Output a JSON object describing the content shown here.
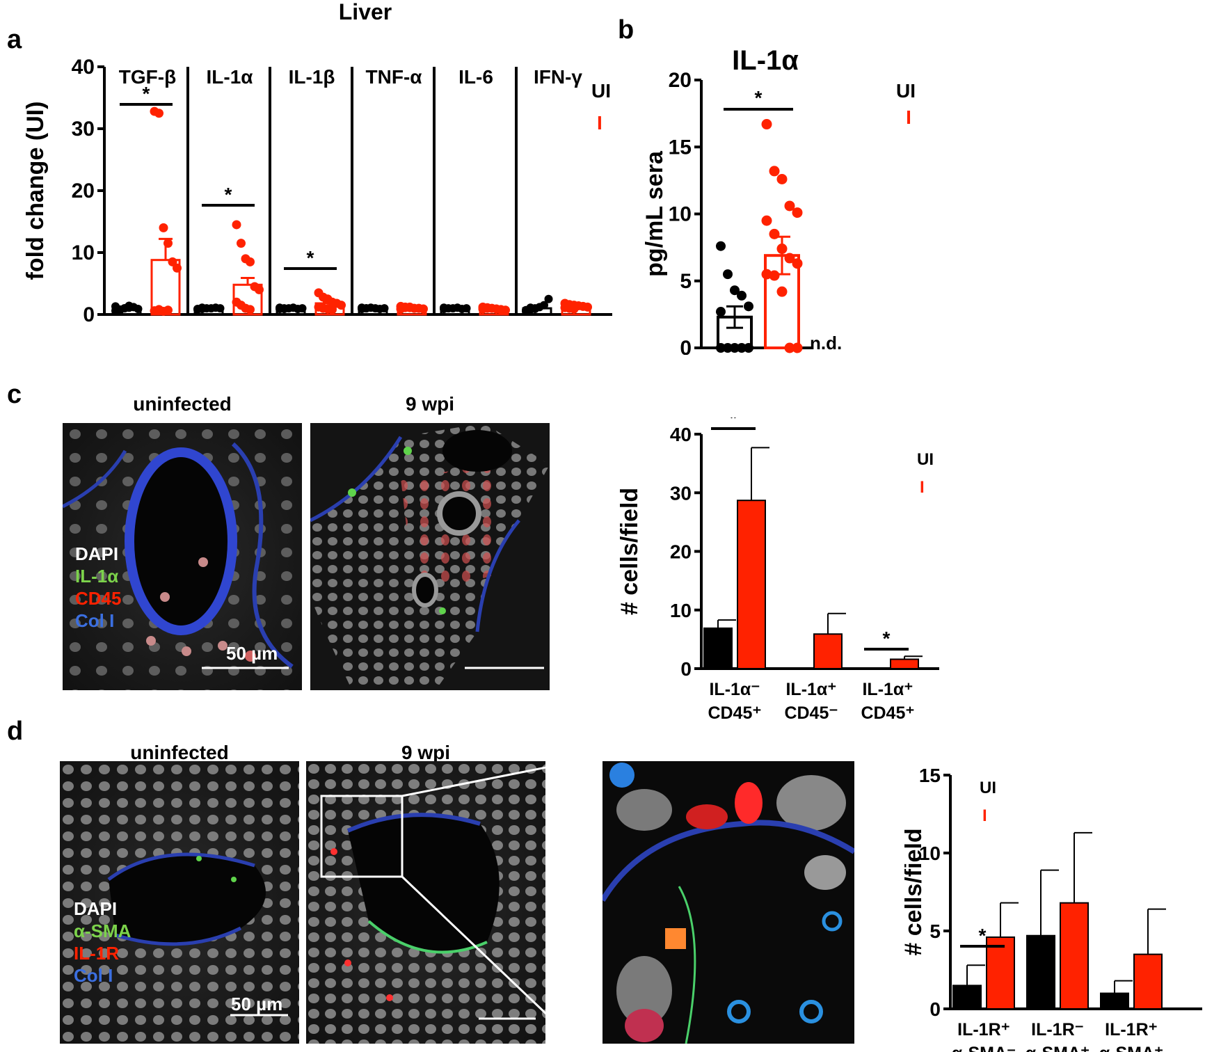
{
  "colors": {
    "ui": "#000000",
    "infected": "#ff2200",
    "dapi": "#ffffff",
    "il1a": "#7cd34b",
    "asma": "#7cd34b",
    "cd45": "#ff2200",
    "il1r": "#ff2200",
    "col1": "#3b6fe0"
  },
  "panel_a": {
    "letter": "a",
    "title": "Liver",
    "legend_ui": "UI",
    "legend_i": "I"
  },
  "panel_b": {
    "letter": "b",
    "title": "IL-1α",
    "legend_ui": "UI",
    "legend_i": "I",
    "nd_label": "n.d."
  },
  "panel_c": {
    "letter": "c",
    "img_left_title": "uninfected",
    "img_right_title": "9 wpi",
    "scale_label": "50 µm",
    "stains": [
      "DAPI",
      "IL-1α",
      "CD45",
      "Col I"
    ],
    "legend_ui": "UI",
    "legend_i": "I"
  },
  "panel_d": {
    "letter": "d",
    "img_left_title": "uninfected",
    "img_right_title": "9 wpi",
    "scale_label": "50 µm",
    "stains": [
      "DAPI",
      "α-SMA",
      "IL-1R",
      "Col I"
    ],
    "legend_ui": "UI",
    "legend_i": "I"
  },
  "chart_data": [
    {
      "id": "a",
      "type": "bar",
      "title": "Liver",
      "ylabel": "fold change (UI)",
      "ylim": [
        0,
        40
      ],
      "yticks": [
        0,
        10,
        20,
        30,
        40
      ],
      "categories": [
        "TGF-β",
        "IL-1α",
        "IL-1β",
        "TNF-α",
        "IL-6",
        "IFN-γ"
      ],
      "significant": [
        true,
        true,
        true,
        false,
        false,
        false
      ],
      "series": [
        {
          "name": "UI",
          "values": [
            1.0,
            1.0,
            1.0,
            1.0,
            1.0,
            1.0
          ]
        },
        {
          "name": "I",
          "values": [
            8.8,
            4.8,
            1.8,
            1.1,
            0.9,
            1.3
          ]
        }
      ],
      "error": {
        "UI": [
          0.2,
          0.1,
          0.1,
          0.1,
          0.1,
          0.3
        ],
        "I": [
          3.4,
          1.1,
          0.3,
          0.1,
          0.1,
          0.2
        ]
      },
      "points": {
        "UI": [
          [
            0.6,
            0.8,
            1.0,
            1.1,
            1.2,
            0.9,
            1.3,
            0.7,
            1.0,
            1.4
          ],
          [
            0.8,
            0.9,
            1.0,
            1.0,
            1.1,
            1.0,
            0.9,
            1.1
          ],
          [
            0.9,
            1.0,
            1.0,
            1.1,
            0.9,
            1.0,
            1.1,
            0.9
          ],
          [
            0.9,
            1.0,
            1.1,
            1.0,
            0.9,
            1.0,
            1.1,
            1.0
          ],
          [
            0.9,
            1.0,
            1.0,
            1.1,
            0.9,
            1.0,
            1.1
          ],
          [
            0.5,
            0.8,
            1.0,
            1.2,
            1.5,
            2.5,
            0.7,
            1.1,
            0.9
          ]
        ],
        "I": [
          [
            32.8,
            32.5,
            14.0,
            11.5,
            8.5,
            7.5,
            0.6,
            0.8,
            0.5,
            0.7
          ],
          [
            14.5,
            11.5,
            9.0,
            8.5,
            4.5,
            4.0,
            2.0,
            1.5,
            1.0,
            0.8
          ],
          [
            3.5,
            2.8,
            2.5,
            2.0,
            1.8,
            1.5,
            1.2,
            1.0,
            0.9,
            0.8
          ],
          [
            1.3,
            1.2,
            1.1,
            1.0,
            1.0,
            0.9,
            0.9,
            1.1,
            1.2
          ],
          [
            1.2,
            1.0,
            1.0,
            0.9,
            0.8,
            0.7,
            0.9,
            1.1
          ],
          [
            1.8,
            1.6,
            1.5,
            1.4,
            1.3,
            1.2,
            1.1,
            1.0,
            0.9
          ]
        ]
      }
    },
    {
      "id": "b",
      "type": "bar",
      "title": "IL-1α",
      "ylabel": "pg/mL sera",
      "ylim": [
        0,
        20
      ],
      "yticks": [
        0,
        5,
        10,
        15,
        20
      ],
      "categories": [
        "UI",
        "I"
      ],
      "significant": [
        true
      ],
      "values": [
        2.3,
        6.9
      ],
      "error": [
        0.8,
        1.4
      ],
      "points": {
        "UI": [
          7.6,
          5.5,
          4.3,
          3.9,
          3.1,
          2.7,
          0,
          0,
          0,
          0,
          0
        ],
        "I": [
          16.7,
          13.2,
          12.6,
          10.6,
          10.1,
          9.5,
          8.5,
          7.4,
          6.7,
          6.3,
          5.5,
          5.4,
          4.2,
          0,
          0
        ]
      }
    },
    {
      "id": "c",
      "type": "bar",
      "ylabel": "# cells/field",
      "ylim": [
        0,
        40
      ],
      "yticks": [
        0,
        10,
        20,
        30,
        40
      ],
      "categories": [
        [
          "IL-1α⁻",
          "CD45⁺"
        ],
        [
          "IL-1α⁺",
          "CD45⁻"
        ],
        [
          "IL-1α⁺",
          "CD45⁺"
        ]
      ],
      "significant": [
        true,
        false,
        true
      ],
      "series": [
        {
          "name": "UI",
          "values": [
            6.9,
            0,
            0
          ]
        },
        {
          "name": "I",
          "values": [
            28.7,
            5.9,
            1.6
          ]
        }
      ],
      "error": {
        "UI": [
          1.4,
          0,
          0
        ],
        "I": [
          9.0,
          3.5,
          0.5
        ]
      }
    },
    {
      "id": "d",
      "type": "bar",
      "ylabel": "# cells/field",
      "ylim": [
        0,
        15
      ],
      "yticks": [
        0,
        5,
        10,
        15
      ],
      "categories": [
        [
          "IL-1R⁺",
          "α-SMA⁻"
        ],
        [
          "IL-1R⁻",
          "α-SMA⁺"
        ],
        [
          "IL-1R⁺",
          "α-SMA⁺"
        ]
      ],
      "significant": [
        true,
        false,
        false
      ],
      "series": [
        {
          "name": "UI",
          "values": [
            1.5,
            4.7,
            1.0
          ]
        },
        {
          "name": "I",
          "values": [
            4.6,
            6.8,
            3.5
          ]
        }
      ],
      "error": {
        "UI": [
          1.3,
          4.2,
          0.8
        ],
        "I": [
          2.2,
          4.5,
          2.9
        ]
      }
    }
  ]
}
